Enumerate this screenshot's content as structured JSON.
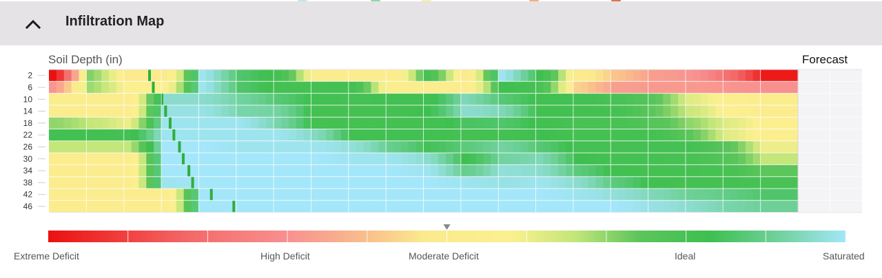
{
  "header": {
    "title": "Infiltration Map",
    "toggle_icon": "chevron-up-icon"
  },
  "top_strip_colors": [
    "#bfe9f2",
    "#8ed9a8",
    "#f7f0a0",
    "#f4b07a",
    "#e07050"
  ],
  "chart_data": {
    "type": "heatmap",
    "ylabel": "Soil Depth (in)",
    "forecast_label": "Forecast",
    "depths": [
      2,
      6,
      10,
      14,
      18,
      22,
      26,
      30,
      34,
      38,
      42,
      46
    ],
    "color_scale": {
      "min_label": "Extreme Deficit",
      "labels": [
        "Extreme Deficit",
        "High Deficit",
        "Moderate Deficit",
        "Ideal",
        "Saturated"
      ],
      "label_positions": [
        0,
        0.3,
        0.5,
        0.8,
        1.0
      ],
      "stops": [
        {
          "v": 0.0,
          "c": "#ec1010"
        },
        {
          "v": 0.18,
          "c": "#f46a6a"
        },
        {
          "v": 0.3,
          "c": "#f89090"
        },
        {
          "v": 0.4,
          "c": "#f9bf8c"
        },
        {
          "v": 0.47,
          "c": "#fbe98e"
        },
        {
          "v": 0.58,
          "c": "#fbf08f"
        },
        {
          "v": 0.66,
          "c": "#c4e67a"
        },
        {
          "v": 0.74,
          "c": "#5cc55c"
        },
        {
          "v": 0.83,
          "c": "#3fbf50"
        },
        {
          "v": 0.92,
          "c": "#72d2a0"
        },
        {
          "v": 1.0,
          "c": "#a4e6fa"
        }
      ],
      "marker_value": 0.5
    },
    "time_steps": 20,
    "forecast_steps": 2,
    "rows": [
      [
        0.0,
        0.71,
        0.5,
        0.5,
        0.99,
        0.86,
        0.81,
        0.53,
        0.53,
        0.51,
        0.8,
        0.49,
        0.99,
        0.83,
        0.5,
        0.41,
        0.33,
        0.31,
        0.2,
        0.02
      ],
      [
        0.31,
        0.69,
        0.56,
        0.56,
        0.99,
        0.86,
        0.81,
        0.81,
        0.81,
        0.52,
        0.52,
        0.52,
        0.83,
        0.8,
        0.43,
        0.33,
        0.32,
        0.32,
        0.31,
        0.3
      ],
      [
        0.52,
        0.51,
        0.51,
        0.96,
        0.96,
        0.92,
        0.87,
        0.82,
        0.81,
        0.82,
        0.82,
        0.94,
        0.87,
        0.82,
        0.82,
        0.8,
        0.75,
        0.62,
        0.55,
        0.52
      ],
      [
        0.52,
        0.52,
        0.52,
        0.98,
        0.98,
        0.93,
        0.92,
        0.81,
        0.81,
        0.81,
        0.83,
        0.96,
        0.94,
        0.82,
        0.82,
        0.81,
        0.74,
        0.65,
        0.56,
        0.53
      ],
      [
        0.7,
        0.66,
        0.6,
        0.99,
        0.99,
        0.99,
        0.93,
        0.81,
        0.81,
        0.81,
        0.81,
        0.85,
        0.86,
        0.82,
        0.8,
        0.8,
        0.76,
        0.7,
        0.62,
        0.56
      ],
      [
        0.82,
        0.82,
        0.81,
        0.99,
        0.99,
        0.99,
        0.99,
        0.95,
        0.82,
        0.82,
        0.82,
        0.81,
        0.81,
        0.83,
        0.81,
        0.81,
        0.81,
        0.74,
        0.62,
        0.55
      ],
      [
        0.66,
        0.66,
        0.66,
        1.0,
        1.0,
        0.99,
        0.99,
        0.99,
        0.97,
        0.9,
        0.84,
        0.88,
        0.92,
        0.87,
        0.81,
        0.81,
        0.81,
        0.81,
        0.75,
        0.6
      ],
      [
        0.52,
        0.52,
        0.52,
        1.0,
        1.0,
        1.0,
        1.0,
        1.0,
        0.99,
        0.99,
        0.96,
        0.83,
        0.92,
        0.94,
        0.83,
        0.81,
        0.81,
        0.8,
        0.76,
        0.66
      ],
      [
        0.52,
        0.52,
        0.52,
        1.0,
        1.0,
        1.0,
        1.0,
        1.0,
        1.0,
        1.0,
        0.99,
        0.9,
        0.97,
        0.96,
        0.88,
        0.82,
        0.81,
        0.81,
        0.8,
        0.74
      ],
      [
        0.52,
        0.52,
        0.52,
        0.99,
        1.0,
        1.0,
        1.0,
        1.0,
        1.0,
        1.0,
        1.0,
        0.99,
        0.98,
        0.99,
        0.96,
        0.88,
        0.82,
        0.81,
        0.81,
        0.8
      ],
      [
        0.52,
        0.52,
        0.52,
        0.52,
        1.0,
        1.0,
        1.0,
        1.0,
        1.0,
        1.0,
        1.0,
        1.0,
        1.0,
        1.0,
        0.99,
        0.97,
        0.94,
        0.91,
        0.89,
        0.86
      ],
      [
        0.52,
        0.52,
        0.52,
        0.52,
        1.0,
        1.0,
        1.0,
        1.0,
        1.0,
        1.0,
        1.0,
        1.0,
        1.0,
        1.0,
        1.0,
        1.0,
        0.98,
        0.96,
        0.93,
        0.91
      ]
    ],
    "wetting_front_step": [
      2.65,
      2.75,
      2.98,
      3.08,
      3.2,
      3.3,
      3.45,
      3.55,
      3.7,
      3.8,
      4.3,
      4.9
    ]
  }
}
